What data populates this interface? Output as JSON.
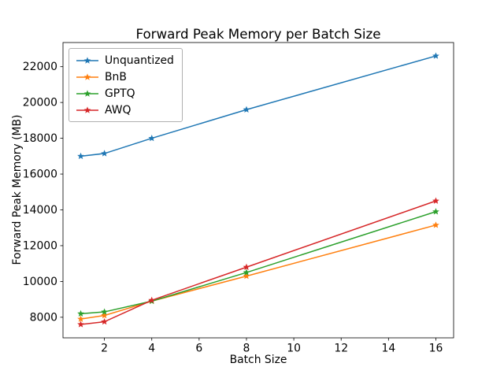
{
  "chart_data": {
    "type": "line",
    "title": "Forward Peak Memory per Batch Size",
    "xlabel": "Batch Size",
    "ylabel": "Forward Peak Memory (MB)",
    "x": [
      1,
      2,
      4,
      8,
      16
    ],
    "series": [
      {
        "name": "Unquantized",
        "color": "#1f77b4",
        "values": [
          17000,
          17150,
          18000,
          19600,
          22600
        ]
      },
      {
        "name": "BnB",
        "color": "#ff7f0e",
        "values": [
          7900,
          8100,
          8900,
          10300,
          13150
        ]
      },
      {
        "name": "GPTQ",
        "color": "#2ca02c",
        "values": [
          8200,
          8300,
          8900,
          10500,
          13900
        ]
      },
      {
        "name": "AWQ",
        "color": "#d62728",
        "values": [
          7600,
          7750,
          8950,
          10800,
          14500
        ]
      }
    ],
    "marker": "star",
    "xlim": [
      0.25,
      16.75
    ],
    "ylim": [
      6850,
      23350
    ],
    "xticks": [
      2,
      4,
      6,
      8,
      10,
      12,
      14,
      16
    ],
    "yticks": [
      8000,
      10000,
      12000,
      14000,
      16000,
      18000,
      20000,
      22000
    ],
    "grid": false,
    "legend_position": "upper left"
  }
}
